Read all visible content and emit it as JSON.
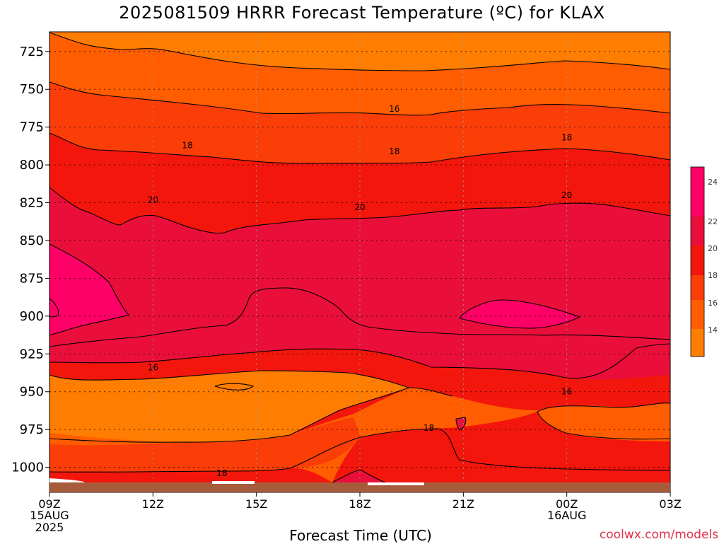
{
  "title": "2025081509 HRRR Forecast Temperature (ºC) for KLAX",
  "credit": "coolwx.com/models",
  "colors": {
    "c12": "#ff7d00",
    "c14": "#ff5d00",
    "c16": "#fb3d08",
    "c18": "#f3160c",
    "c20": "#ea0f3a",
    "c22": "#ff0066",
    "ground": "#a65b3a",
    "grid": "#9a9a9a"
  },
  "chart_data": {
    "type": "heatmap",
    "title": "2025081509 HRRR Forecast Temperature (ºC) for KLAX",
    "xlabel": "Forecast Time (UTC)",
    "ylabel": "",
    "y_unit": "hPa",
    "ylim": [
      1010,
      712
    ],
    "y_ticks": [
      "725",
      "750",
      "775",
      "800",
      "825",
      "850",
      "875",
      "900",
      "925",
      "950",
      "975",
      "1000"
    ],
    "x_ticks": [
      {
        "hour": 0,
        "label": "09Z",
        "sub": [
          "15AUG",
          "2025"
        ]
      },
      {
        "hour": 3,
        "label": "12Z",
        "sub": []
      },
      {
        "hour": 6,
        "label": "15Z",
        "sub": []
      },
      {
        "hour": 9,
        "label": "18Z",
        "sub": []
      },
      {
        "hour": 12,
        "label": "21Z",
        "sub": []
      },
      {
        "hour": 15,
        "label": "00Z",
        "sub": [
          "16AUG"
        ]
      },
      {
        "hour": 18,
        "label": "03Z",
        "sub": []
      }
    ],
    "colorbar": {
      "levels": [
        14,
        16,
        18,
        20,
        22,
        24
      ],
      "ticks": [
        "24",
        "22",
        "20",
        "18",
        "16",
        "14"
      ]
    },
    "contour_labels": [
      {
        "text": "16",
        "hour": 10.0,
        "pressure": 763
      },
      {
        "text": "18",
        "hour": 4.0,
        "pressure": 787
      },
      {
        "text": "18",
        "hour": 10.0,
        "pressure": 791
      },
      {
        "text": "18",
        "hour": 15.0,
        "pressure": 782
      },
      {
        "text": "20",
        "hour": 3.0,
        "pressure": 823
      },
      {
        "text": "20",
        "hour": 9.0,
        "pressure": 828
      },
      {
        "text": "20",
        "hour": 15.0,
        "pressure": 820
      },
      {
        "text": "16",
        "hour": 3.0,
        "pressure": 934
      },
      {
        "text": "16",
        "hour": 15.0,
        "pressure": 950
      },
      {
        "text": "18",
        "hour": 11.0,
        "pressure": 974
      },
      {
        "text": "18",
        "hour": 5.0,
        "pressure": 1004
      }
    ],
    "grid": true,
    "legend": "colorbar right"
  }
}
